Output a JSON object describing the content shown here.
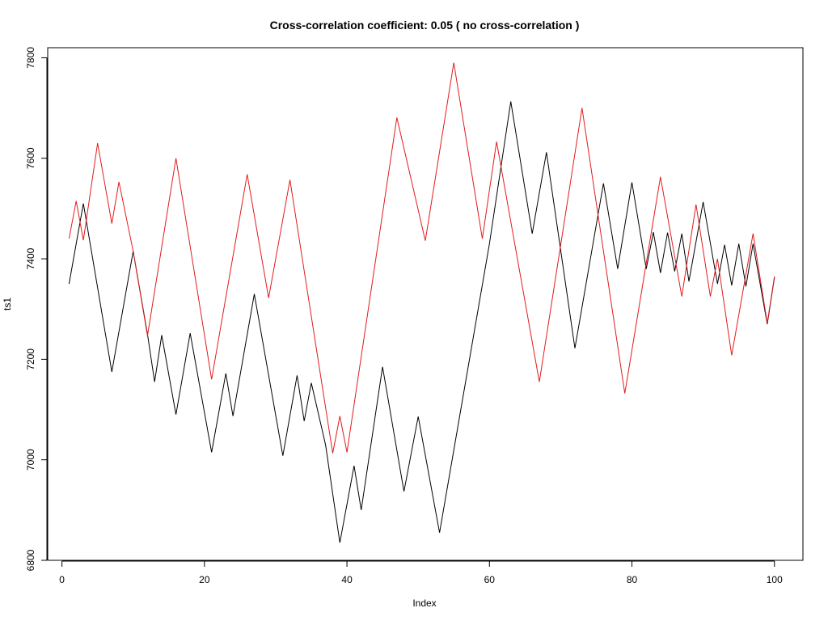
{
  "chart_data": {
    "type": "line",
    "title": "Cross-correlation coefficient: 0.05 ( no cross-correlation )",
    "xlabel": "Index",
    "ylabel": "ts1",
    "xlim": [
      -2,
      104
    ],
    "ylim": [
      6800,
      7820
    ],
    "x_ticks": [
      0,
      20,
      40,
      60,
      80,
      100
    ],
    "y_ticks": [
      6800,
      7000,
      7200,
      7400,
      7600,
      7800
    ],
    "grid": false,
    "legend": "none",
    "series": [
      {
        "color": "#000000",
        "points": [
          [
            1,
            7350
          ],
          [
            3,
            7510
          ],
          [
            7,
            7175
          ],
          [
            10,
            7415
          ],
          [
            12,
            7250
          ],
          [
            13,
            7155
          ],
          [
            14,
            7248
          ],
          [
            16,
            7090
          ],
          [
            18,
            7252
          ],
          [
            21,
            7015
          ],
          [
            23,
            7172
          ],
          [
            24,
            7087
          ],
          [
            27,
            7330
          ],
          [
            31,
            7008
          ],
          [
            33,
            7168
          ],
          [
            34,
            7077
          ],
          [
            35,
            7153
          ],
          [
            37,
            7030
          ],
          [
            39,
            6835
          ],
          [
            41,
            6988
          ],
          [
            42,
            6900
          ],
          [
            45,
            7185
          ],
          [
            48,
            6937
          ],
          [
            50,
            7086
          ],
          [
            53,
            6855
          ],
          [
            60,
            7430
          ],
          [
            63,
            7713
          ],
          [
            66,
            7450
          ],
          [
            68,
            7612
          ],
          [
            72,
            7222
          ],
          [
            76,
            7550
          ],
          [
            78,
            7380
          ],
          [
            80,
            7552
          ],
          [
            82,
            7380
          ],
          [
            83,
            7453
          ],
          [
            84,
            7372
          ],
          [
            85,
            7452
          ],
          [
            86,
            7375
          ],
          [
            87,
            7450
          ],
          [
            88,
            7355
          ],
          [
            90,
            7513
          ],
          [
            92,
            7350
          ],
          [
            93,
            7428
          ],
          [
            94,
            7347
          ],
          [
            95,
            7430
          ],
          [
            96,
            7345
          ],
          [
            97,
            7430
          ],
          [
            99,
            7270
          ],
          [
            100,
            7363
          ]
        ]
      },
      {
        "color": "#e31a1c",
        "points": [
          [
            1,
            7440
          ],
          [
            2,
            7515
          ],
          [
            3,
            7437
          ],
          [
            5,
            7630
          ],
          [
            7,
            7470
          ],
          [
            8,
            7553
          ],
          [
            10,
            7415
          ],
          [
            12,
            7247
          ],
          [
            16,
            7600
          ],
          [
            21,
            7160
          ],
          [
            26,
            7568
          ],
          [
            29,
            7322
          ],
          [
            32,
            7557
          ],
          [
            38,
            7013
          ],
          [
            39,
            7087
          ],
          [
            40,
            7015
          ],
          [
            47,
            7681
          ],
          [
            51,
            7436
          ],
          [
            55,
            7790
          ],
          [
            59,
            7440
          ],
          [
            61,
            7633
          ],
          [
            67,
            7155
          ],
          [
            73,
            7700
          ],
          [
            79,
            7132
          ],
          [
            84,
            7563
          ],
          [
            87,
            7325
          ],
          [
            89,
            7508
          ],
          [
            91,
            7325
          ],
          [
            92,
            7400
          ],
          [
            94,
            7208
          ],
          [
            97,
            7450
          ],
          [
            99,
            7272
          ],
          [
            100,
            7365
          ]
        ]
      }
    ]
  }
}
